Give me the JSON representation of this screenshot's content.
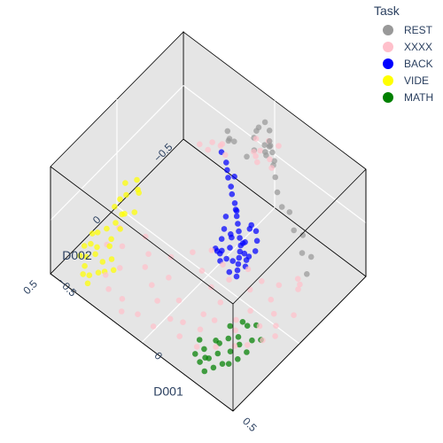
{
  "chart_data": {
    "type": "scatter",
    "dimensions": 3,
    "legend": {
      "title": "Task",
      "placement": "top-right",
      "entries": [
        {
          "name": "REST",
          "color": "#999999"
        },
        {
          "name": "XXXX",
          "color": "#ffc0cb"
        },
        {
          "name": "BACK",
          "color": "#0000ff"
        },
        {
          "name": "VIDE",
          "color": "#ffff00"
        },
        {
          "name": "MATH",
          "color": "#008000"
        }
      ]
    },
    "axes": {
      "x": {
        "title": "D001",
        "range": [
          -0.5,
          0.5
        ],
        "tick_labels": [
          "−0.5",
          "0",
          "0.5"
        ]
      },
      "y": {
        "title": "D002",
        "range": [
          -0.5,
          0.5
        ],
        "tick_labels": [
          "−0.5",
          "0",
          "0.5"
        ]
      },
      "z": {
        "title": "",
        "range": [
          -0.5,
          0.5
        ],
        "tick_labels": []
      }
    },
    "background": "#e5e5e5",
    "grid": true,
    "series": [
      {
        "name": "REST",
        "color": "#999999",
        "points": [
          [
            0.02,
            -0.4,
            0.45
          ],
          [
            0.0,
            -0.38,
            0.4
          ],
          [
            0.03,
            -0.42,
            0.36
          ],
          [
            -0.02,
            -0.39,
            0.33
          ],
          [
            0.04,
            -0.37,
            0.3
          ],
          [
            0.05,
            -0.36,
            0.26
          ],
          [
            0.03,
            -0.42,
            0.26
          ],
          [
            0.06,
            -0.4,
            0.22
          ],
          [
            -0.01,
            -0.36,
            0.2
          ],
          [
            0.02,
            -0.44,
            0.18
          ],
          [
            0.1,
            -0.36,
            0.24
          ],
          [
            0.12,
            -0.34,
            0.14
          ],
          [
            0.16,
            -0.3,
            0.1
          ],
          [
            0.2,
            -0.28,
            0.04
          ],
          [
            0.22,
            -0.31,
            -0.02
          ],
          [
            0.28,
            -0.26,
            -0.05
          ],
          [
            0.3,
            -0.3,
            -0.12
          ],
          [
            0.34,
            -0.24,
            -0.16
          ],
          [
            0.36,
            -0.28,
            -0.22
          ],
          [
            0.38,
            -0.22,
            -0.28
          ],
          [
            -0.18,
            -0.4,
            0.02
          ],
          [
            -0.2,
            -0.42,
            0.06
          ],
          [
            -0.16,
            -0.38,
            0.09
          ],
          [
            -0.08,
            -0.4,
            0.0
          ],
          [
            -0.12,
            -0.36,
            0.14
          ],
          [
            0.0,
            -0.46,
            0.12
          ],
          [
            0.08,
            -0.38,
            0.15
          ],
          [
            0.01,
            -0.33,
            0.38
          ],
          [
            0.07,
            -0.34,
            0.28
          ]
        ]
      },
      {
        "name": "XXXX",
        "color": "#ffc0cb",
        "points": [
          [
            0.0,
            -0.36,
            0.32
          ],
          [
            0.04,
            -0.4,
            0.3
          ],
          [
            0.03,
            -0.35,
            0.26
          ],
          [
            0.06,
            -0.38,
            0.18
          ],
          [
            0.02,
            -0.33,
            0.22
          ],
          [
            0.08,
            -0.42,
            0.28
          ],
          [
            -0.02,
            -0.37,
            0.16
          ],
          [
            0.1,
            -0.34,
            0.2
          ],
          [
            0.05,
            -0.3,
            0.24
          ],
          [
            -0.18,
            -0.34,
            0.05
          ],
          [
            -0.22,
            -0.3,
            0.01
          ],
          [
            -0.24,
            -0.36,
            -0.02
          ],
          [
            -0.14,
            -0.32,
            0.04
          ],
          [
            -0.28,
            -0.32,
            -0.04
          ],
          [
            -0.2,
            -0.38,
            -0.01
          ],
          [
            0.4,
            -0.14,
            -0.25
          ],
          [
            0.36,
            -0.18,
            -0.3
          ],
          [
            0.42,
            -0.1,
            -0.22
          ],
          [
            -0.4,
            0.12,
            -0.42
          ],
          [
            -0.34,
            0.18,
            -0.44
          ],
          [
            -0.3,
            0.06,
            -0.45
          ],
          [
            -0.38,
            0.24,
            -0.4
          ],
          [
            -0.28,
            0.28,
            -0.44
          ],
          [
            -0.24,
            0.12,
            -0.46
          ],
          [
            -0.2,
            0.2,
            -0.43
          ],
          [
            -0.16,
            0.06,
            -0.46
          ],
          [
            -0.12,
            0.26,
            -0.42
          ],
          [
            -0.1,
            0.16,
            -0.45
          ],
          [
            -0.06,
            0.3,
            -0.44
          ],
          [
            0.0,
            0.22,
            -0.46
          ],
          [
            0.04,
            0.34,
            -0.43
          ],
          [
            0.08,
            0.3,
            -0.46
          ],
          [
            0.12,
            0.38,
            -0.44
          ],
          [
            0.16,
            0.28,
            -0.45
          ],
          [
            0.2,
            0.36,
            -0.46
          ],
          [
            0.02,
            0.44,
            -0.4
          ],
          [
            -0.08,
            0.42,
            -0.44
          ],
          [
            -0.18,
            0.4,
            -0.45
          ],
          [
            0.1,
            -0.02,
            -0.44
          ],
          [
            0.2,
            -0.04,
            -0.43
          ],
          [
            0.26,
            0.04,
            -0.45
          ],
          [
            0.3,
            -0.06,
            -0.42
          ],
          [
            0.36,
            0.0,
            -0.4
          ],
          [
            0.34,
            0.08,
            -0.44
          ],
          [
            0.24,
            0.12,
            -0.46
          ],
          [
            0.14,
            0.1,
            -0.45
          ],
          [
            0.06,
            0.06,
            -0.46
          ],
          [
            0.18,
            0.2,
            -0.44
          ],
          [
            0.28,
            0.18,
            -0.43
          ],
          [
            0.32,
            0.24,
            -0.45
          ],
          [
            0.4,
            0.04,
            -0.41
          ],
          [
            0.44,
            -0.04,
            -0.36
          ],
          [
            0.44,
            0.1,
            -0.38
          ],
          [
            0.4,
            0.14,
            -0.42
          ],
          [
            0.36,
            0.2,
            -0.44
          ],
          [
            0.22,
            -0.1,
            -0.4
          ],
          [
            0.3,
            -0.12,
            -0.36
          ],
          [
            -0.04,
            -0.08,
            -0.42
          ],
          [
            -0.1,
            -0.02,
            -0.44
          ],
          [
            -0.02,
            0.02,
            -0.46
          ],
          [
            0.08,
            0.0,
            -0.3
          ],
          [
            0.16,
            -0.08,
            -0.34
          ],
          [
            -0.3,
            0.36,
            -0.43
          ],
          [
            -0.24,
            0.42,
            -0.41
          ],
          [
            -0.14,
            0.46,
            -0.44
          ],
          [
            0.26,
            0.3,
            -0.46
          ],
          [
            0.12,
            0.2,
            -0.46
          ]
        ]
      },
      {
        "name": "BACK",
        "color": "#0000ff",
        "points": [
          [
            -0.16,
            -0.32,
            0.04
          ],
          [
            -0.12,
            -0.3,
            0.02
          ],
          [
            -0.1,
            -0.28,
            0.0
          ],
          [
            -0.08,
            -0.26,
            -0.02
          ],
          [
            -0.05,
            -0.24,
            -0.04
          ],
          [
            -0.03,
            -0.22,
            -0.06
          ],
          [
            0.0,
            -0.2,
            -0.08
          ],
          [
            0.02,
            -0.18,
            -0.09
          ],
          [
            0.04,
            -0.16,
            -0.1
          ],
          [
            0.06,
            -0.14,
            -0.12
          ],
          [
            0.08,
            -0.12,
            -0.14
          ],
          [
            0.1,
            -0.1,
            -0.15
          ],
          [
            0.12,
            -0.08,
            -0.17
          ],
          [
            0.13,
            -0.06,
            -0.19
          ],
          [
            0.14,
            -0.04,
            -0.21
          ],
          [
            0.15,
            -0.02,
            -0.23
          ],
          [
            0.16,
            0.0,
            -0.25
          ],
          [
            0.17,
            0.02,
            -0.27
          ],
          [
            0.14,
            -0.08,
            -0.22
          ],
          [
            0.11,
            -0.11,
            -0.2
          ],
          [
            0.09,
            -0.04,
            -0.18
          ],
          [
            0.07,
            -0.08,
            -0.16
          ],
          [
            0.05,
            -0.1,
            -0.18
          ],
          [
            0.03,
            -0.06,
            -0.2
          ],
          [
            0.12,
            -0.02,
            -0.24
          ],
          [
            0.1,
            0.0,
            -0.22
          ],
          [
            0.08,
            0.02,
            -0.24
          ],
          [
            0.06,
            -0.02,
            -0.22
          ],
          [
            0.04,
            0.0,
            -0.2
          ],
          [
            0.18,
            -0.04,
            -0.18
          ],
          [
            0.2,
            -0.08,
            -0.12
          ],
          [
            0.18,
            -0.12,
            -0.1
          ],
          [
            0.16,
            -0.14,
            -0.06
          ],
          [
            0.14,
            -0.12,
            -0.04
          ],
          [
            0.12,
            -0.16,
            -0.08
          ],
          [
            0.15,
            -0.1,
            -0.26
          ],
          [
            0.13,
            0.02,
            -0.28
          ],
          [
            0.1,
            -0.14,
            -0.24
          ],
          [
            0.16,
            -0.06,
            -0.29
          ],
          [
            0.05,
            -0.02,
            -0.26
          ],
          [
            0.02,
            -0.04,
            -0.3
          ],
          [
            0.0,
            -0.12,
            -0.22
          ],
          [
            -0.02,
            -0.16,
            -0.18
          ],
          [
            0.01,
            -0.2,
            -0.14
          ],
          [
            -0.06,
            -0.28,
            -0.01
          ]
        ]
      },
      {
        "name": "VIDE",
        "color": "#ffff00",
        "points": [
          [
            -0.4,
            -0.02,
            -0.24
          ],
          [
            -0.42,
            -0.04,
            -0.2
          ],
          [
            -0.38,
            0.0,
            -0.22
          ],
          [
            -0.44,
            0.02,
            -0.18
          ],
          [
            -0.42,
            0.04,
            -0.24
          ],
          [
            -0.36,
            0.06,
            -0.3
          ],
          [
            -0.4,
            0.08,
            -0.34
          ],
          [
            -0.42,
            0.12,
            -0.4
          ],
          [
            -0.44,
            0.16,
            -0.43
          ],
          [
            -0.4,
            0.18,
            -0.45
          ],
          [
            -0.44,
            0.1,
            -0.3
          ],
          [
            -0.38,
            0.14,
            -0.38
          ],
          [
            -0.46,
            0.2,
            -0.44
          ],
          [
            -0.42,
            0.26,
            -0.45
          ],
          [
            -0.38,
            0.22,
            -0.44
          ],
          [
            -0.36,
            0.3,
            -0.46
          ],
          [
            -0.34,
            0.26,
            -0.46
          ],
          [
            -0.32,
            0.34,
            -0.45
          ],
          [
            -0.3,
            0.3,
            -0.46
          ],
          [
            -0.44,
            0.28,
            -0.42
          ],
          [
            -0.46,
            0.3,
            -0.44
          ],
          [
            -0.42,
            0.34,
            -0.44
          ],
          [
            -0.4,
            0.38,
            -0.45
          ],
          [
            -0.36,
            0.4,
            -0.46
          ],
          [
            -0.34,
            0.36,
            -0.46
          ],
          [
            -0.4,
            0.3,
            -0.44
          ],
          [
            -0.44,
            0.36,
            -0.43
          ],
          [
            -0.38,
            0.42,
            -0.45
          ],
          [
            -0.46,
            0.24,
            -0.4
          ],
          [
            -0.34,
            0.44,
            -0.46
          ],
          [
            -0.44,
            0.06,
            -0.28
          ],
          [
            -0.4,
            0.1,
            -0.32
          ]
        ]
      },
      {
        "name": "MATH",
        "color": "#008000",
        "points": [
          [
            0.28,
            0.22,
            -0.34
          ],
          [
            0.32,
            0.18,
            -0.3
          ],
          [
            0.36,
            0.2,
            -0.26
          ],
          [
            0.38,
            0.16,
            -0.28
          ],
          [
            0.4,
            0.22,
            -0.32
          ],
          [
            0.36,
            0.26,
            -0.36
          ],
          [
            0.34,
            0.3,
            -0.4
          ],
          [
            0.3,
            0.34,
            -0.42
          ],
          [
            0.26,
            0.3,
            -0.4
          ],
          [
            0.28,
            0.38,
            -0.44
          ],
          [
            0.32,
            0.4,
            -0.45
          ],
          [
            0.3,
            0.44,
            -0.46
          ],
          [
            0.26,
            0.42,
            -0.45
          ],
          [
            0.34,
            0.36,
            -0.44
          ],
          [
            0.38,
            0.3,
            -0.42
          ],
          [
            0.4,
            0.26,
            -0.38
          ],
          [
            0.24,
            0.36,
            -0.43
          ],
          [
            0.22,
            0.4,
            -0.45
          ],
          [
            0.36,
            0.34,
            -0.44
          ],
          [
            0.42,
            0.18,
            -0.34
          ],
          [
            0.3,
            0.26,
            -0.38
          ],
          [
            0.34,
            0.24,
            -0.34
          ],
          [
            0.28,
            0.3,
            -0.4
          ],
          [
            0.2,
            0.34,
            -0.42
          ],
          [
            0.26,
            0.38,
            -0.46
          ]
        ]
      }
    ]
  }
}
